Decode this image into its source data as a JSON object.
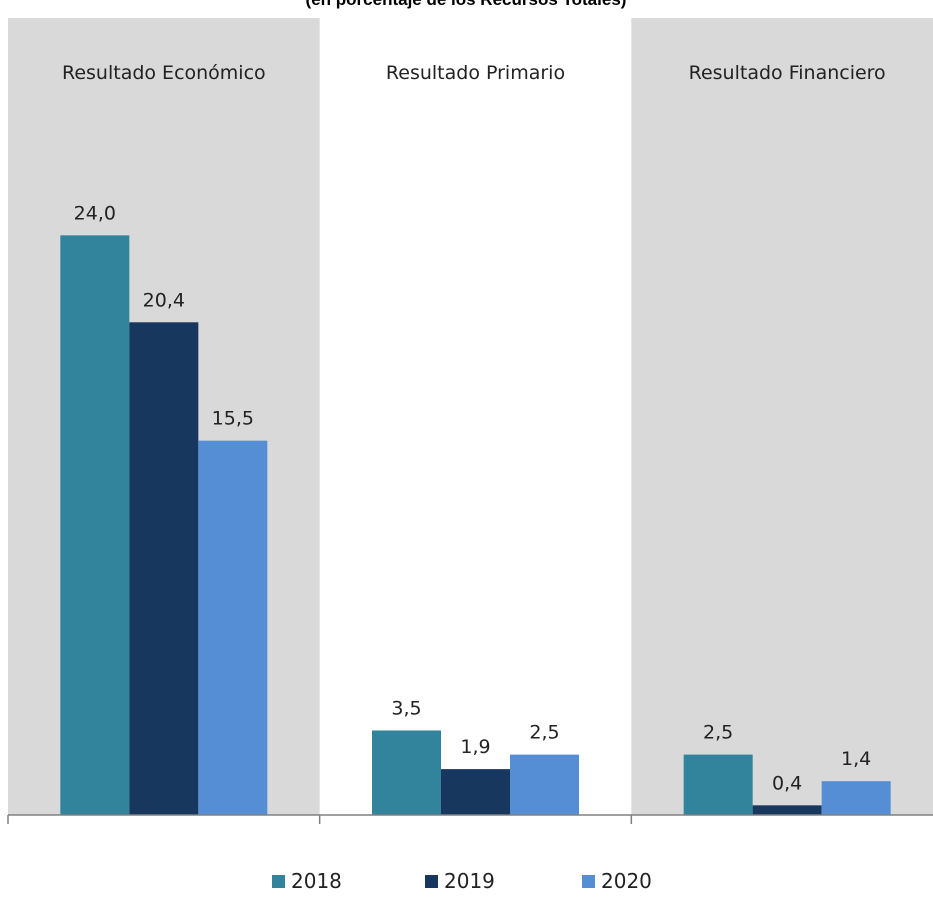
{
  "chart_data": {
    "type": "bar",
    "title": "(en porcentaje de los Recursos Totales)",
    "categories": [
      "Resultado Económico",
      "Resultado Primario",
      "Resultado Financiero"
    ],
    "series": [
      {
        "name": "2018",
        "values": [
          24.0,
          3.5,
          2.5
        ],
        "labels": [
          "24,0",
          "3,5",
          "2,5"
        ],
        "color": "#31849b"
      },
      {
        "name": "2019",
        "values": [
          20.4,
          1.9,
          0.4
        ],
        "labels": [
          "20,4",
          "1,9",
          "0,4"
        ],
        "color": "#17375e"
      },
      {
        "name": "2020",
        "values": [
          15.5,
          2.5,
          1.4
        ],
        "labels": [
          "15,5",
          "2,5",
          "1,4"
        ],
        "color": "#558ed5"
      }
    ],
    "ylim": [
      0,
      33
    ],
    "grid": false,
    "legend_position": "bottom",
    "band_color": "#d9d9d9"
  }
}
